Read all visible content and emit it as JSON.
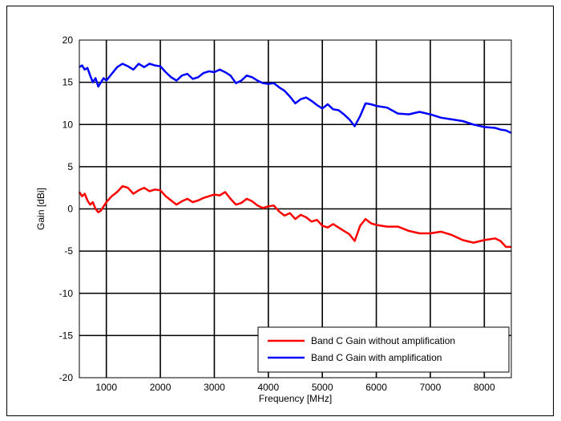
{
  "chart_data": {
    "type": "line",
    "title": "",
    "xlabel": "Frequency [MHz]",
    "ylabel": "Gain [dBi]",
    "xlim": [
      500,
      8500
    ],
    "ylim": [
      -20,
      20
    ],
    "x_ticks": [
      1000,
      2000,
      3000,
      4000,
      5000,
      6000,
      7000,
      8000
    ],
    "y_ticks": [
      -20,
      -15,
      -10,
      -5,
      0,
      5,
      10,
      15,
      20
    ],
    "grid": true,
    "legend_position": "bottom-right",
    "series": [
      {
        "name": "Band C Gain without amplification",
        "color": "#ff0000",
        "x": [
          500,
          550,
          600,
          650,
          700,
          750,
          800,
          850,
          900,
          950,
          1000,
          1100,
          1200,
          1300,
          1400,
          1500,
          1600,
          1700,
          1800,
          1900,
          2000,
          2100,
          2200,
          2300,
          2400,
          2500,
          2600,
          2700,
          2800,
          2900,
          3000,
          3100,
          3200,
          3300,
          3400,
          3500,
          3600,
          3700,
          3800,
          3900,
          4000,
          4100,
          4200,
          4300,
          4400,
          4500,
          4600,
          4700,
          4800,
          4900,
          5000,
          5100,
          5200,
          5300,
          5400,
          5500,
          5600,
          5700,
          5800,
          5900,
          6000,
          6200,
          6400,
          6600,
          6800,
          7000,
          7200,
          7400,
          7600,
          7800,
          8000,
          8200,
          8300,
          8400,
          8500
        ],
        "y": [
          2.0,
          1.5,
          1.8,
          1.0,
          0.5,
          0.8,
          0.0,
          -0.4,
          -0.2,
          0.3,
          0.8,
          1.5,
          2.0,
          2.7,
          2.5,
          1.8,
          2.2,
          2.5,
          2.1,
          2.3,
          2.2,
          1.5,
          1.0,
          0.5,
          0.9,
          1.2,
          0.8,
          1.0,
          1.3,
          1.5,
          1.7,
          1.6,
          2.0,
          1.2,
          0.5,
          0.7,
          1.2,
          0.9,
          0.4,
          0.1,
          0.3,
          0.4,
          -0.3,
          -0.8,
          -0.5,
          -1.2,
          -0.7,
          -1.0,
          -1.5,
          -1.3,
          -2.0,
          -2.2,
          -1.8,
          -2.2,
          -2.6,
          -3.0,
          -3.8,
          -2.0,
          -1.2,
          -1.7,
          -1.9,
          -2.1,
          -2.1,
          -2.6,
          -2.9,
          -2.9,
          -2.7,
          -3.1,
          -3.7,
          -4.0,
          -3.7,
          -3.5,
          -3.8,
          -4.5,
          -4.5
        ]
      },
      {
        "name": "Band C Gain with amplification",
        "color": "#0000ff",
        "x": [
          500,
          550,
          600,
          650,
          700,
          750,
          800,
          850,
          900,
          950,
          1000,
          1100,
          1200,
          1300,
          1400,
          1500,
          1600,
          1700,
          1800,
          1900,
          2000,
          2100,
          2200,
          2300,
          2400,
          2500,
          2600,
          2700,
          2800,
          2900,
          3000,
          3100,
          3200,
          3300,
          3400,
          3500,
          3600,
          3700,
          3800,
          3900,
          4000,
          4100,
          4200,
          4300,
          4400,
          4500,
          4600,
          4700,
          4800,
          4900,
          5000,
          5100,
          5200,
          5300,
          5400,
          5500,
          5600,
          5700,
          5800,
          5900,
          6000,
          6200,
          6400,
          6600,
          6800,
          7000,
          7200,
          7400,
          7600,
          7800,
          8000,
          8200,
          8300,
          8400,
          8500
        ],
        "y": [
          16.8,
          17.0,
          16.5,
          16.7,
          15.8,
          15.0,
          15.5,
          14.5,
          15.0,
          15.5,
          15.2,
          16.0,
          16.8,
          17.2,
          16.9,
          16.5,
          17.2,
          16.8,
          17.2,
          17.0,
          16.9,
          16.2,
          15.6,
          15.2,
          15.8,
          16.0,
          15.4,
          15.6,
          16.1,
          16.3,
          16.2,
          16.5,
          16.2,
          15.8,
          14.9,
          15.2,
          15.8,
          15.6,
          15.2,
          14.9,
          14.8,
          14.9,
          14.4,
          14.0,
          13.3,
          12.5,
          13.0,
          13.2,
          12.8,
          12.3,
          11.9,
          12.4,
          11.8,
          11.7,
          11.2,
          10.6,
          9.8,
          11.0,
          12.5,
          12.4,
          12.2,
          12.0,
          11.3,
          11.2,
          11.5,
          11.2,
          10.8,
          10.6,
          10.4,
          10.0,
          9.7,
          9.6,
          9.4,
          9.3,
          9.0
        ]
      }
    ]
  }
}
